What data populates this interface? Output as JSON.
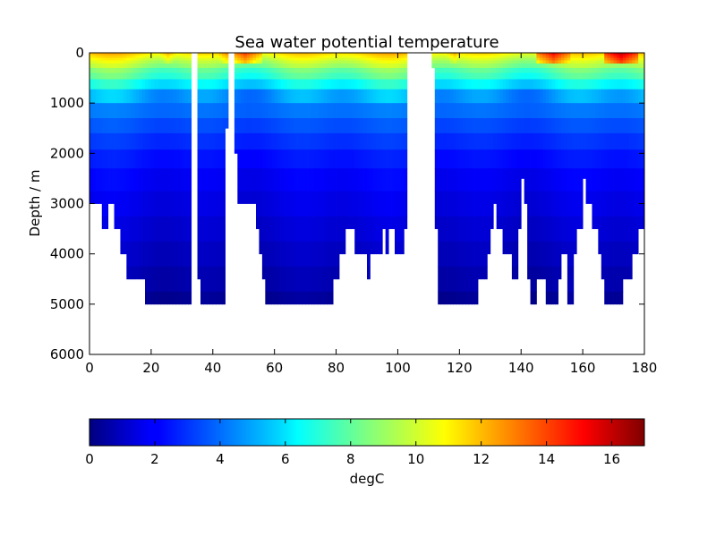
{
  "chart_data": {
    "type": "heatmap",
    "title": "Sea water potential temperature",
    "xlabel": "",
    "ylabel": "Depth / m",
    "xlim": [
      0,
      180
    ],
    "ylim": [
      6000,
      0
    ],
    "y_inverted": true,
    "x_ticks": [
      "0",
      "20",
      "40",
      "60",
      "80",
      "100",
      "120",
      "140",
      "160",
      "180"
    ],
    "y_ticks": [
      "0",
      "1000",
      "2000",
      "3000",
      "4000",
      "5000",
      "6000"
    ],
    "colorbar": {
      "label": "degC",
      "colormap": "jet",
      "range": [
        0,
        17
      ],
      "ticks": [
        "0",
        "2",
        "4",
        "6",
        "8",
        "10",
        "12",
        "14",
        "16"
      ]
    },
    "depth_levels": [
      0,
      25,
      75,
      125,
      175,
      250,
      350,
      450,
      600,
      850,
      1150,
      1450,
      1750,
      2100,
      2500,
      3000,
      3500,
      4000,
      4500,
      5000
    ],
    "gaps": [
      [
        33,
        35
      ],
      [
        45,
        47
      ],
      [
        103,
        111
      ]
    ],
    "gap_depth": 6000,
    "max_depth_profile": [
      [
        0,
        3000
      ],
      [
        2,
        3000
      ],
      [
        4,
        3500
      ],
      [
        6,
        3000
      ],
      [
        8,
        3500
      ],
      [
        10,
        4000
      ],
      [
        12,
        4500
      ],
      [
        16,
        4500
      ],
      [
        18,
        5000
      ],
      [
        22,
        5000
      ],
      [
        32,
        5000
      ],
      [
        33,
        2500
      ],
      [
        35,
        4500
      ],
      [
        36,
        5000
      ],
      [
        43,
        5000
      ],
      [
        44,
        1500
      ],
      [
        47,
        2000
      ],
      [
        48,
        3000
      ],
      [
        54,
        3500
      ],
      [
        55,
        4000
      ],
      [
        56,
        4500
      ],
      [
        57,
        5000
      ],
      [
        62,
        5000
      ],
      [
        78,
        5000
      ],
      [
        79,
        4500
      ],
      [
        81,
        4000
      ],
      [
        83,
        3500
      ],
      [
        84,
        3500
      ],
      [
        86,
        4000
      ],
      [
        89,
        4000
      ],
      [
        90,
        4500
      ],
      [
        91,
        4000
      ],
      [
        95,
        3500
      ],
      [
        96,
        4000
      ],
      [
        97,
        3500
      ],
      [
        99,
        4000
      ],
      [
        102,
        3500
      ],
      [
        103,
        3500
      ],
      [
        111,
        300
      ],
      [
        112,
        3500
      ],
      [
        113,
        5000
      ],
      [
        125,
        5000
      ],
      [
        126,
        4500
      ],
      [
        129,
        4000
      ],
      [
        130,
        3500
      ],
      [
        131,
        3000
      ],
      [
        132,
        3500
      ],
      [
        134,
        4000
      ],
      [
        137,
        4500
      ],
      [
        139,
        3500
      ],
      [
        140,
        2500
      ],
      [
        141,
        3000
      ],
      [
        142,
        4500
      ],
      [
        143,
        5000
      ],
      [
        145,
        4500
      ],
      [
        148,
        5000
      ],
      [
        152,
        4500
      ],
      [
        153,
        4000
      ],
      [
        155,
        5000
      ],
      [
        157,
        4000
      ],
      [
        158,
        3500
      ],
      [
        160,
        2500
      ],
      [
        161,
        3000
      ],
      [
        163,
        3500
      ],
      [
        165,
        4000
      ],
      [
        166,
        4500
      ],
      [
        167,
        5000
      ],
      [
        173,
        4500
      ],
      [
        176,
        4000
      ],
      [
        178,
        3500
      ],
      [
        180,
        3500
      ]
    ],
    "temperature_profile_by_depth": [
      [
        0,
        11.5
      ],
      [
        25,
        11
      ],
      [
        75,
        10.5
      ],
      [
        125,
        10
      ],
      [
        175,
        9.5
      ],
      [
        250,
        9
      ],
      [
        350,
        8
      ],
      [
        450,
        7.5
      ],
      [
        600,
        6.3
      ],
      [
        850,
        4.8
      ],
      [
        1150,
        4
      ],
      [
        1450,
        3.4
      ],
      [
        1750,
        2.9
      ],
      [
        2100,
        2.4
      ],
      [
        2500,
        2
      ],
      [
        3000,
        1.7
      ],
      [
        3500,
        1.4
      ],
      [
        4000,
        1.1
      ],
      [
        4500,
        0.8
      ],
      [
        5000,
        0.4
      ]
    ],
    "surface_warm_spots": [
      {
        "x": 45,
        "value": 13
      },
      {
        "x": 50,
        "value": 14
      },
      {
        "x": 25,
        "value": 12
      },
      {
        "x": 150,
        "value": 15
      },
      {
        "x": 172,
        "value": 16
      },
      {
        "x": 118,
        "value": 12
      }
    ]
  }
}
